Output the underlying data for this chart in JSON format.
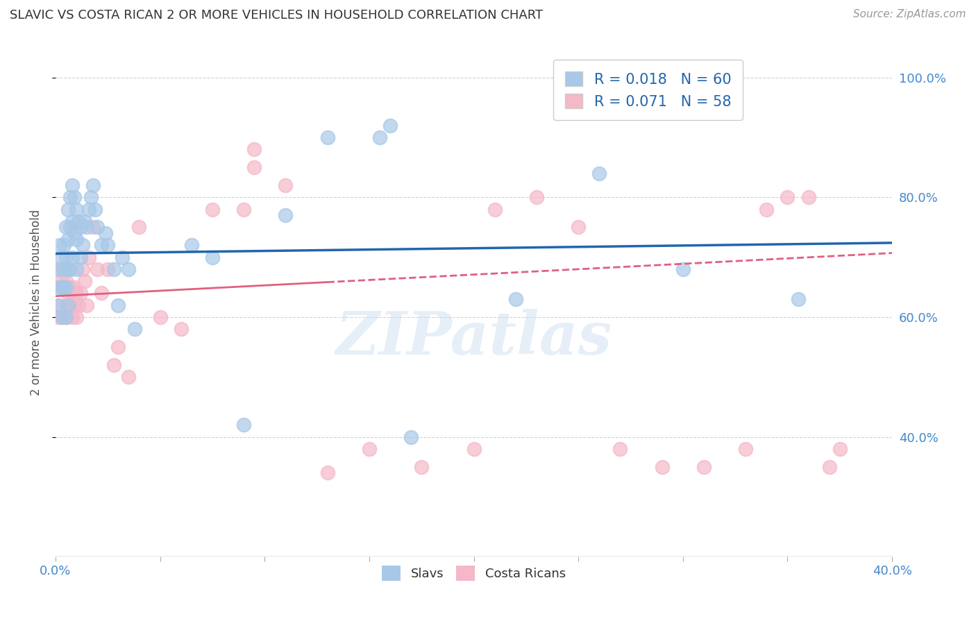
{
  "title": "SLAVIC VS COSTA RICAN 2 OR MORE VEHICLES IN HOUSEHOLD CORRELATION CHART",
  "source": "Source: ZipAtlas.com",
  "ylabel": "2 or more Vehicles in Household",
  "x_min": 0.0,
  "x_max": 0.4,
  "y_min": 0.2,
  "y_max": 1.05,
  "x_ticks": [
    0.0,
    0.05,
    0.1,
    0.15,
    0.2,
    0.25,
    0.3,
    0.35,
    0.4
  ],
  "y_ticks_right": [
    0.4,
    0.6,
    0.8,
    1.0
  ],
  "y_tick_labels_right": [
    "40.0%",
    "60.0%",
    "80.0%",
    "100.0%"
  ],
  "slavs_color": "#a8c8e8",
  "costa_ricans_color": "#f4b8c8",
  "trend_slavs_color": "#2166ac",
  "trend_costa_color": "#e06080",
  "R_slavs": 0.018,
  "N_slavs": 60,
  "R_costa": 0.071,
  "N_costa": 58,
  "slavs_x": [
    0.001,
    0.001,
    0.002,
    0.002,
    0.003,
    0.003,
    0.003,
    0.004,
    0.004,
    0.004,
    0.005,
    0.005,
    0.005,
    0.005,
    0.006,
    0.006,
    0.006,
    0.006,
    0.007,
    0.007,
    0.007,
    0.008,
    0.008,
    0.008,
    0.009,
    0.009,
    0.01,
    0.01,
    0.01,
    0.011,
    0.012,
    0.012,
    0.013,
    0.014,
    0.015,
    0.016,
    0.017,
    0.018,
    0.019,
    0.02,
    0.022,
    0.024,
    0.025,
    0.028,
    0.03,
    0.032,
    0.035,
    0.038,
    0.065,
    0.075,
    0.09,
    0.11,
    0.13,
    0.155,
    0.16,
    0.22,
    0.26,
    0.3,
    0.355,
    0.17
  ],
  "slavs_y": [
    0.68,
    0.62,
    0.72,
    0.65,
    0.7,
    0.65,
    0.6,
    0.68,
    0.72,
    0.65,
    0.75,
    0.7,
    0.65,
    0.6,
    0.78,
    0.73,
    0.68,
    0.62,
    0.8,
    0.75,
    0.68,
    0.82,
    0.76,
    0.7,
    0.8,
    0.74,
    0.78,
    0.73,
    0.68,
    0.76,
    0.75,
    0.7,
    0.72,
    0.76,
    0.75,
    0.78,
    0.8,
    0.82,
    0.78,
    0.75,
    0.72,
    0.74,
    0.72,
    0.68,
    0.62,
    0.7,
    0.68,
    0.58,
    0.72,
    0.7,
    0.42,
    0.77,
    0.9,
    0.9,
    0.92,
    0.63,
    0.84,
    0.68,
    0.63,
    0.4
  ],
  "costa_x": [
    0.001,
    0.001,
    0.002,
    0.002,
    0.003,
    0.003,
    0.004,
    0.004,
    0.005,
    0.005,
    0.005,
    0.006,
    0.006,
    0.007,
    0.007,
    0.008,
    0.008,
    0.009,
    0.009,
    0.01,
    0.01,
    0.011,
    0.012,
    0.013,
    0.014,
    0.015,
    0.016,
    0.018,
    0.02,
    0.022,
    0.025,
    0.028,
    0.03,
    0.035,
    0.04,
    0.05,
    0.06,
    0.075,
    0.09,
    0.095,
    0.11,
    0.13,
    0.15,
    0.175,
    0.2,
    0.21,
    0.23,
    0.25,
    0.27,
    0.29,
    0.31,
    0.33,
    0.34,
    0.35,
    0.36,
    0.37,
    0.375,
    0.095
  ],
  "costa_y": [
    0.65,
    0.6,
    0.68,
    0.62,
    0.66,
    0.6,
    0.65,
    0.68,
    0.62,
    0.66,
    0.6,
    0.64,
    0.68,
    0.62,
    0.65,
    0.6,
    0.64,
    0.62,
    0.65,
    0.6,
    0.64,
    0.62,
    0.64,
    0.68,
    0.66,
    0.62,
    0.7,
    0.75,
    0.68,
    0.64,
    0.68,
    0.52,
    0.55,
    0.5,
    0.75,
    0.6,
    0.58,
    0.78,
    0.78,
    0.85,
    0.82,
    0.34,
    0.38,
    0.35,
    0.38,
    0.78,
    0.8,
    0.75,
    0.38,
    0.35,
    0.35,
    0.38,
    0.78,
    0.8,
    0.8,
    0.35,
    0.38,
    0.88
  ],
  "watermark": "ZIPatlas",
  "legend_slavs_label": "Slavs",
  "legend_costa_label": "Costa Ricans",
  "background_color": "#ffffff",
  "grid_color": "#cccccc",
  "trend_slavs_intercept": 0.706,
  "trend_slavs_slope": 0.045,
  "trend_costa_intercept": 0.635,
  "trend_costa_slope": 0.18,
  "trend_solid_end": 0.13
}
